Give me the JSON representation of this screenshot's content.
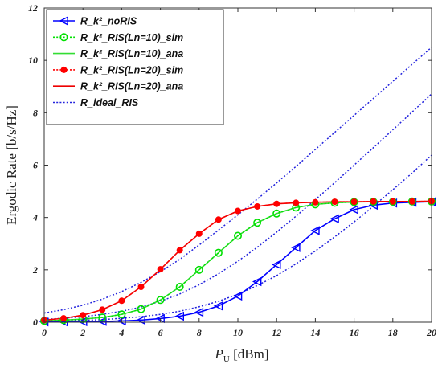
{
  "chart_data": {
    "type": "line",
    "xlabel_main": "P",
    "xlabel_sub": "U",
    "xlabel_unit": "[dBm]",
    "ylabel": "Ergodic Rate [b/s/Hz]",
    "xlim": [
      0,
      20
    ],
    "ylim": [
      0,
      12
    ],
    "xticks": [
      0,
      2,
      4,
      6,
      8,
      10,
      12,
      14,
      16,
      18,
      20
    ],
    "yticks": [
      0,
      2,
      4,
      6,
      8,
      10,
      12
    ],
    "grid": false,
    "legend_position": "top-left",
    "x": [
      0,
      1,
      2,
      3,
      4,
      5,
      6,
      7,
      8,
      9,
      10,
      11,
      12,
      13,
      14,
      15,
      16,
      17,
      18,
      19,
      20
    ],
    "series": [
      {
        "name": "R_k²_noRIS",
        "color": "#0000ff",
        "line": "solid",
        "marker": "triangle-left",
        "values": [
          0.01,
          0.01,
          0.02,
          0.03,
          0.05,
          0.08,
          0.14,
          0.23,
          0.38,
          0.62,
          1.0,
          1.55,
          2.2,
          2.85,
          3.5,
          3.95,
          4.3,
          4.47,
          4.55,
          4.58,
          4.6
        ]
      },
      {
        "name": "R_k²_RIS(Ln=10)_sim",
        "color": "#00e000",
        "line": "dotted",
        "marker": "circle-open",
        "values": [
          0.05,
          0.08,
          0.12,
          0.18,
          0.3,
          0.5,
          0.85,
          1.35,
          2.0,
          2.65,
          3.3,
          3.8,
          4.15,
          4.38,
          4.5,
          4.56,
          4.59,
          4.6,
          4.6,
          4.61,
          4.61
        ]
      },
      {
        "name": "R_k²_RIS(Ln=10)_ana",
        "color": "#33dd33",
        "line": "solid",
        "marker": "none",
        "values": [
          0.05,
          0.08,
          0.12,
          0.18,
          0.3,
          0.5,
          0.85,
          1.35,
          2.0,
          2.65,
          3.3,
          3.8,
          4.15,
          4.38,
          4.5,
          4.56,
          4.59,
          4.6,
          4.6,
          4.61,
          4.61
        ]
      },
      {
        "name": "R_k²_RIS(Ln=20)_sim",
        "color": "#ff0000",
        "line": "dotted",
        "marker": "circle-filled",
        "values": [
          0.08,
          0.15,
          0.27,
          0.48,
          0.82,
          1.35,
          2.02,
          2.75,
          3.38,
          3.92,
          4.25,
          4.42,
          4.52,
          4.56,
          4.58,
          4.6,
          4.6,
          4.61,
          4.61,
          4.61,
          4.62
        ]
      },
      {
        "name": "R_k²_RIS(Ln=20)_ana",
        "color": "#ee0000",
        "line": "solid",
        "marker": "none",
        "values": [
          0.08,
          0.15,
          0.27,
          0.48,
          0.82,
          1.35,
          2.02,
          2.75,
          3.38,
          3.92,
          4.25,
          4.42,
          4.52,
          4.56,
          4.58,
          4.6,
          4.6,
          4.61,
          4.61,
          4.61,
          4.62
        ]
      },
      {
        "name": "R_ideal_RIS",
        "color": "#2222dd",
        "line": "dotted",
        "marker": "none",
        "note_curves": "three dotted curves",
        "curves": [
          [
            0.35,
            0.48,
            0.65,
            0.88,
            1.17,
            1.52,
            1.93,
            2.4,
            2.95,
            3.52,
            4.1,
            4.7,
            5.32,
            5.95,
            6.6,
            7.25,
            7.9,
            8.55,
            9.2,
            9.85,
            10.5
          ],
          [
            0.11,
            0.15,
            0.21,
            0.3,
            0.42,
            0.58,
            0.8,
            1.08,
            1.43,
            1.85,
            2.33,
            2.86,
            3.44,
            4.05,
            4.68,
            5.33,
            6.0,
            6.67,
            7.35,
            8.03,
            8.72
          ],
          [
            0.04,
            0.05,
            0.07,
            0.1,
            0.15,
            0.21,
            0.3,
            0.42,
            0.59,
            0.8,
            1.07,
            1.4,
            1.78,
            2.23,
            2.72,
            3.26,
            3.83,
            4.43,
            5.06,
            5.7,
            6.38
          ]
        ]
      }
    ]
  }
}
